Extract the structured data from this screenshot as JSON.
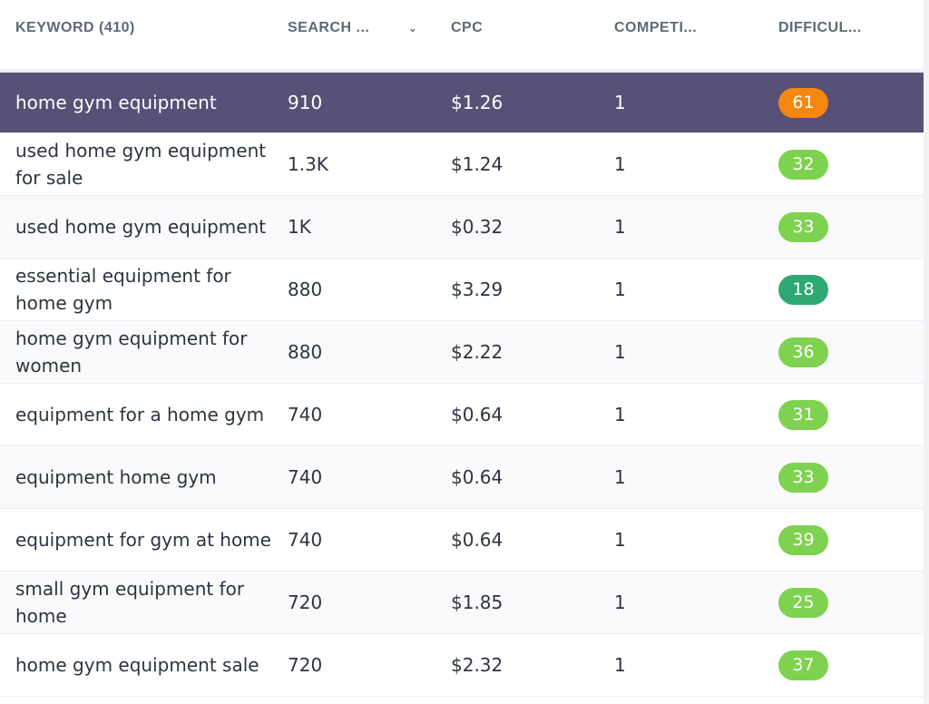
{
  "header": {
    "keyword": "KEYWORD (410)",
    "search": "SEARCH ...",
    "cpc": "CPC",
    "competition": "COMPETI...",
    "difficulty": "DIFFICUL..."
  },
  "colors": {
    "selected_row": "#575077",
    "orange": "#f4870f",
    "light_green": "#7ed250",
    "dark_green": "#2ea872"
  },
  "rows": [
    {
      "keyword": "home gym equipment",
      "search": "910",
      "cpc": "$1.26",
      "competition": "1",
      "difficulty": "61",
      "color": "#f4870f",
      "selected": true
    },
    {
      "keyword": "used home gym equipment for sale",
      "search": "1.3K",
      "cpc": "$1.24",
      "competition": "1",
      "difficulty": "32",
      "color": "#7ed250"
    },
    {
      "keyword": "used home gym equipment",
      "search": "1K",
      "cpc": "$0.32",
      "competition": "1",
      "difficulty": "33",
      "color": "#7ed250"
    },
    {
      "keyword": "essential equipment for home gym",
      "search": "880",
      "cpc": "$3.29",
      "competition": "1",
      "difficulty": "18",
      "color": "#2ea872"
    },
    {
      "keyword": "home gym equipment for women",
      "search": "880",
      "cpc": "$2.22",
      "competition": "1",
      "difficulty": "36",
      "color": "#7ed250"
    },
    {
      "keyword": "equipment for a home gym",
      "search": "740",
      "cpc": "$0.64",
      "competition": "1",
      "difficulty": "31",
      "color": "#7ed250"
    },
    {
      "keyword": "equipment home gym",
      "search": "740",
      "cpc": "$0.64",
      "competition": "1",
      "difficulty": "33",
      "color": "#7ed250"
    },
    {
      "keyword": "equipment for gym at home",
      "search": "740",
      "cpc": "$0.64",
      "competition": "1",
      "difficulty": "39",
      "color": "#7ed250"
    },
    {
      "keyword": "small gym equipment for home",
      "search": "720",
      "cpc": "$1.85",
      "competition": "1",
      "difficulty": "25",
      "color": "#7ed250"
    },
    {
      "keyword": "home gym equipment sale",
      "search": "720",
      "cpc": "$2.32",
      "competition": "1",
      "difficulty": "37",
      "color": "#7ed250"
    }
  ]
}
